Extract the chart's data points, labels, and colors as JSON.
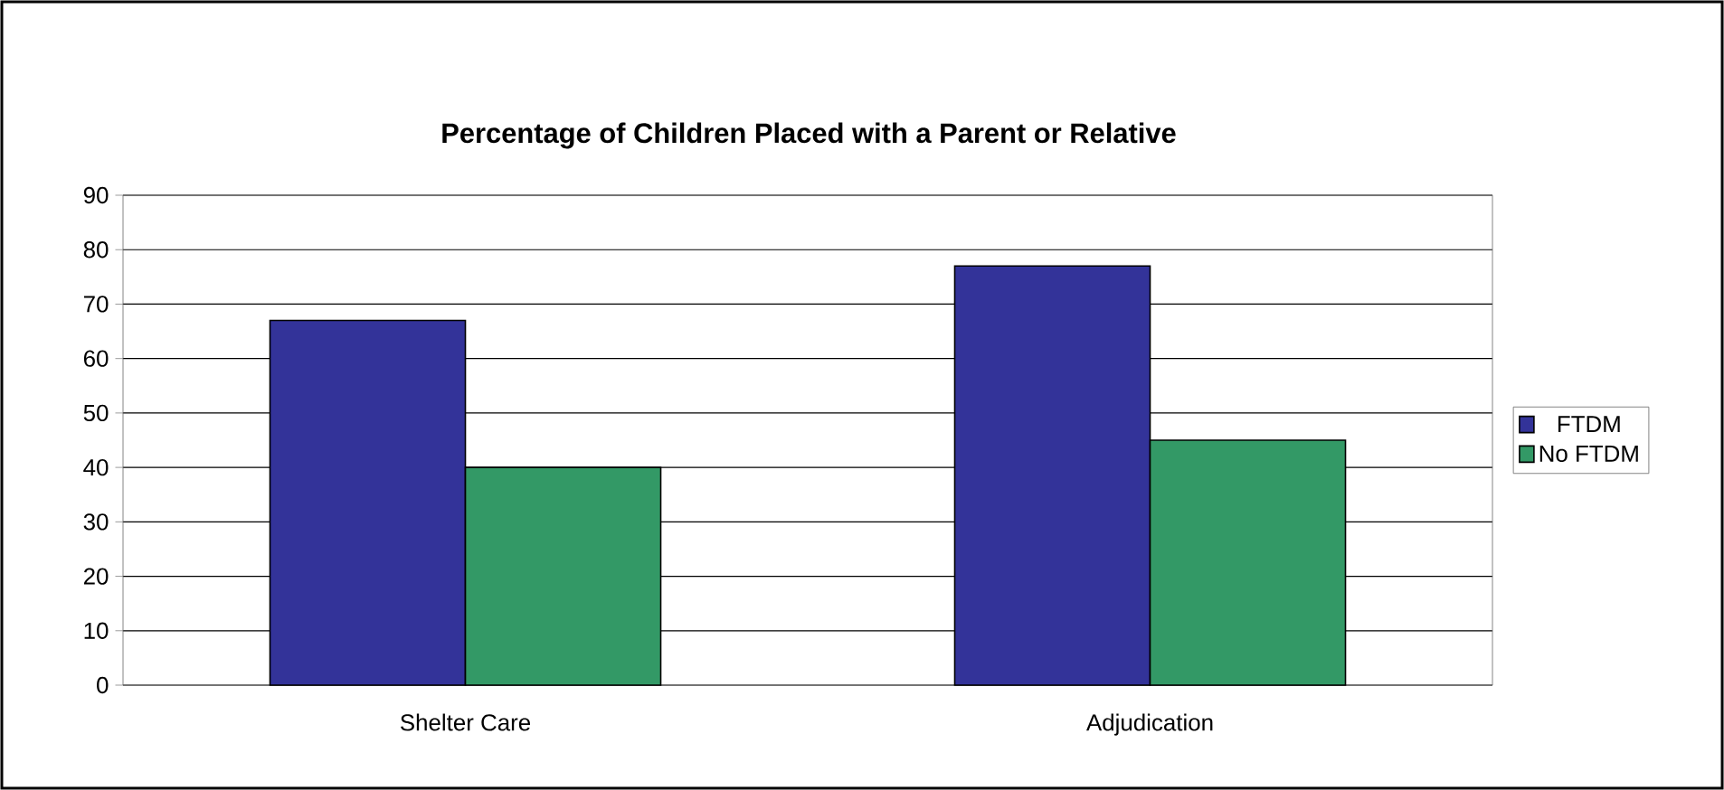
{
  "chart_data": {
    "type": "bar",
    "title": "Percentage of Children Placed with a Parent or Relative",
    "categories": [
      "Shelter Care",
      "Adjudication"
    ],
    "series": [
      {
        "name": "FTDM",
        "color": "#333399",
        "values": [
          67,
          77
        ]
      },
      {
        "name": "No FTDM",
        "color": "#339966",
        "values": [
          40,
          45
        ]
      }
    ],
    "ylim": [
      0,
      90
    ],
    "yticks": [
      0,
      10,
      20,
      30,
      40,
      50,
      60,
      70,
      80,
      90
    ],
    "grid": "y",
    "legend": "right"
  }
}
